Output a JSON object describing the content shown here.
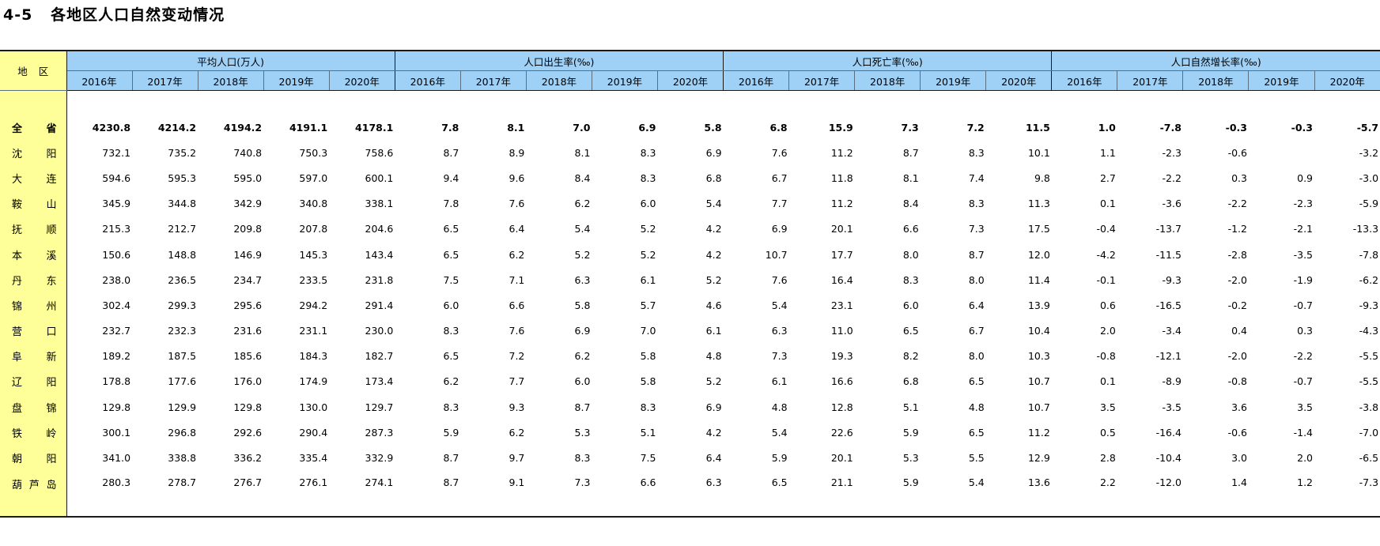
{
  "page": {
    "title": "4-5   各地区人口自然变动情况"
  },
  "table": {
    "region_header": "地区",
    "groups": [
      "平均人口(万人)",
      "人口出生率(‰)",
      "人口死亡率(‰)",
      "人口自然增长率(‰)"
    ],
    "years": [
      "2016年",
      "2017年",
      "2018年",
      "2019年",
      "2020年"
    ],
    "rows": [
      {
        "region": "全省",
        "population": [
          "4230.8",
          "4214.2",
          "4194.2",
          "4191.1",
          "4178.1"
        ],
        "birth_rate": [
          "7.8",
          "8.1",
          "7.0",
          "6.9",
          "5.8"
        ],
        "death_rate": [
          "6.8",
          "15.9",
          "7.3",
          "7.2",
          "11.5"
        ],
        "growth_rate": [
          "1.0",
          "-7.8",
          "-0.3",
          "-0.3",
          "-5.7"
        ]
      },
      {
        "region": "沈阳",
        "population": [
          "732.1",
          "735.2",
          "740.8",
          "750.3",
          "758.6"
        ],
        "birth_rate": [
          "8.7",
          "8.9",
          "8.1",
          "8.3",
          "6.9"
        ],
        "death_rate": [
          "7.6",
          "11.2",
          "8.7",
          "8.3",
          "10.1"
        ],
        "growth_rate": [
          "1.1",
          "-2.3",
          "-0.6",
          "",
          "-3.2"
        ]
      },
      {
        "region": "大连",
        "population": [
          "594.6",
          "595.3",
          "595.0",
          "597.0",
          "600.1"
        ],
        "birth_rate": [
          "9.4",
          "9.6",
          "8.4",
          "8.3",
          "6.8"
        ],
        "death_rate": [
          "6.7",
          "11.8",
          "8.1",
          "7.4",
          "9.8"
        ],
        "growth_rate": [
          "2.7",
          "-2.2",
          "0.3",
          "0.9",
          "-3.0"
        ]
      },
      {
        "region": "鞍山",
        "population": [
          "345.9",
          "344.8",
          "342.9",
          "340.8",
          "338.1"
        ],
        "birth_rate": [
          "7.8",
          "7.6",
          "6.2",
          "6.0",
          "5.4"
        ],
        "death_rate": [
          "7.7",
          "11.2",
          "8.4",
          "8.3",
          "11.3"
        ],
        "growth_rate": [
          "0.1",
          "-3.6",
          "-2.2",
          "-2.3",
          "-5.9"
        ]
      },
      {
        "region": "抚顺",
        "population": [
          "215.3",
          "212.7",
          "209.8",
          "207.8",
          "204.6"
        ],
        "birth_rate": [
          "6.5",
          "6.4",
          "5.4",
          "5.2",
          "4.2"
        ],
        "death_rate": [
          "6.9",
          "20.1",
          "6.6",
          "7.3",
          "17.5"
        ],
        "growth_rate": [
          "-0.4",
          "-13.7",
          "-1.2",
          "-2.1",
          "-13.3"
        ]
      },
      {
        "region": "本溪",
        "population": [
          "150.6",
          "148.8",
          "146.9",
          "145.3",
          "143.4"
        ],
        "birth_rate": [
          "6.5",
          "6.2",
          "5.2",
          "5.2",
          "4.2"
        ],
        "death_rate": [
          "10.7",
          "17.7",
          "8.0",
          "8.7",
          "12.0"
        ],
        "growth_rate": [
          "-4.2",
          "-11.5",
          "-2.8",
          "-3.5",
          "-7.8"
        ]
      },
      {
        "region": "丹东",
        "population": [
          "238.0",
          "236.5",
          "234.7",
          "233.5",
          "231.8"
        ],
        "birth_rate": [
          "7.5",
          "7.1",
          "6.3",
          "6.1",
          "5.2"
        ],
        "death_rate": [
          "7.6",
          "16.4",
          "8.3",
          "8.0",
          "11.4"
        ],
        "growth_rate": [
          "-0.1",
          "-9.3",
          "-2.0",
          "-1.9",
          "-6.2"
        ]
      },
      {
        "region": "锦州",
        "population": [
          "302.4",
          "299.3",
          "295.6",
          "294.2",
          "291.4"
        ],
        "birth_rate": [
          "6.0",
          "6.6",
          "5.8",
          "5.7",
          "4.6"
        ],
        "death_rate": [
          "5.4",
          "23.1",
          "6.0",
          "6.4",
          "13.9"
        ],
        "growth_rate": [
          "0.6",
          "-16.5",
          "-0.2",
          "-0.7",
          "-9.3"
        ]
      },
      {
        "region": "营口",
        "population": [
          "232.7",
          "232.3",
          "231.6",
          "231.1",
          "230.0"
        ],
        "birth_rate": [
          "8.3",
          "7.6",
          "6.9",
          "7.0",
          "6.1"
        ],
        "death_rate": [
          "6.3",
          "11.0",
          "6.5",
          "6.7",
          "10.4"
        ],
        "growth_rate": [
          "2.0",
          "-3.4",
          "0.4",
          "0.3",
          "-4.3"
        ]
      },
      {
        "region": "阜新",
        "population": [
          "189.2",
          "187.5",
          "185.6",
          "184.3",
          "182.7"
        ],
        "birth_rate": [
          "6.5",
          "7.2",
          "6.2",
          "5.8",
          "4.8"
        ],
        "death_rate": [
          "7.3",
          "19.3",
          "8.2",
          "8.0",
          "10.3"
        ],
        "growth_rate": [
          "-0.8",
          "-12.1",
          "-2.0",
          "-2.2",
          "-5.5"
        ]
      },
      {
        "region": "辽阳",
        "population": [
          "178.8",
          "177.6",
          "176.0",
          "174.9",
          "173.4"
        ],
        "birth_rate": [
          "6.2",
          "7.7",
          "6.0",
          "5.8",
          "5.2"
        ],
        "death_rate": [
          "6.1",
          "16.6",
          "6.8",
          "6.5",
          "10.7"
        ],
        "growth_rate": [
          "0.1",
          "-8.9",
          "-0.8",
          "-0.7",
          "-5.5"
        ]
      },
      {
        "region": "盘锦",
        "population": [
          "129.8",
          "129.9",
          "129.8",
          "130.0",
          "129.7"
        ],
        "birth_rate": [
          "8.3",
          "9.3",
          "8.7",
          "8.3",
          "6.9"
        ],
        "death_rate": [
          "4.8",
          "12.8",
          "5.1",
          "4.8",
          "10.7"
        ],
        "growth_rate": [
          "3.5",
          "-3.5",
          "3.6",
          "3.5",
          "-3.8"
        ]
      },
      {
        "region": "铁岭",
        "population": [
          "300.1",
          "296.8",
          "292.6",
          "290.4",
          "287.3"
        ],
        "birth_rate": [
          "5.9",
          "6.2",
          "5.3",
          "5.1",
          "4.2"
        ],
        "death_rate": [
          "5.4",
          "22.6",
          "5.9",
          "6.5",
          "11.2"
        ],
        "growth_rate": [
          "0.5",
          "-16.4",
          "-0.6",
          "-1.4",
          "-7.0"
        ]
      },
      {
        "region": "朝阳",
        "population": [
          "341.0",
          "338.8",
          "336.2",
          "335.4",
          "332.9"
        ],
        "birth_rate": [
          "8.7",
          "9.7",
          "8.3",
          "7.5",
          "6.4"
        ],
        "death_rate": [
          "5.9",
          "20.1",
          "5.3",
          "5.5",
          "12.9"
        ],
        "growth_rate": [
          "2.8",
          "-10.4",
          "3.0",
          "2.0",
          "-6.5"
        ]
      },
      {
        "region": "葫芦岛",
        "population": [
          "280.3",
          "278.7",
          "276.7",
          "276.1",
          "274.1"
        ],
        "birth_rate": [
          "8.7",
          "9.1",
          "7.3",
          "6.6",
          "6.3"
        ],
        "death_rate": [
          "6.5",
          "21.1",
          "5.9",
          "5.4",
          "13.6"
        ],
        "growth_rate": [
          "2.2",
          "-12.0",
          "1.4",
          "1.2",
          "-7.3"
        ]
      }
    ]
  }
}
